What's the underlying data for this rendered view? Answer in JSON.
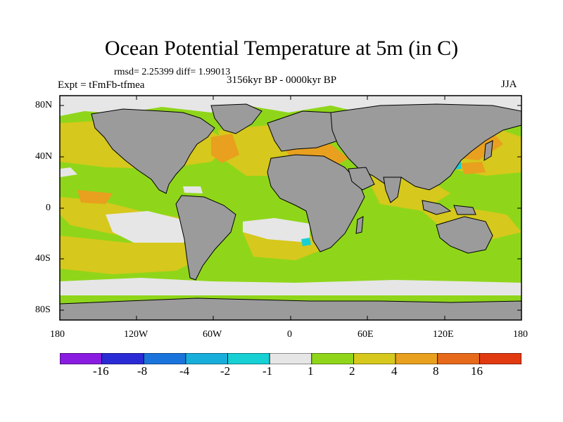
{
  "title": "Ocean Potential Temperature at 5m (in C)",
  "stats": "rmsd= 2.25399 diff= 1.99013",
  "period": "3156kyr BP - 0000kyr BP",
  "experiment": "Expt = tFmFb-tfmea",
  "season": "JJA",
  "map": {
    "lat_ticks": [
      "80N",
      "40N",
      "0",
      "40S",
      "80S"
    ],
    "lon_ticks": [
      "180",
      "120W",
      "60W",
      "0",
      "60E",
      "120E",
      "180"
    ]
  },
  "colorbar": {
    "labels": [
      "-16",
      "-8",
      "-4",
      "-2",
      "-1",
      "1",
      "2",
      "4",
      "8",
      "16"
    ],
    "colors": [
      "#8a1be0",
      "#2b2bd6",
      "#1a74dc",
      "#18aedc",
      "#17d0d4",
      "#e6e6e6",
      "#8fd61a",
      "#d6c81c",
      "#e8a01e",
      "#e66a1a",
      "#e23a10"
    ]
  },
  "colors": {
    "land": "#9b9b9b",
    "near_zero": "#e6e6e6",
    "warm_1_2": "#8fd61a",
    "warm_2_4": "#d6c81c",
    "warm_4_8": "#e8a01e",
    "warm_8_16": "#e66a1a"
  }
}
